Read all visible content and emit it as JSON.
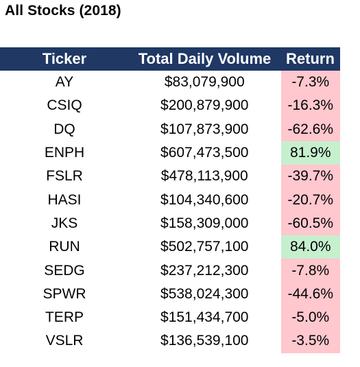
{
  "title": "All Stocks (2018)",
  "columns": {
    "ticker": "Ticker",
    "volume": "Total Daily Volume",
    "return": "Return"
  },
  "colors": {
    "header_bg": "#1f3864",
    "header_text": "#ffffff",
    "positive_bg": "#c6efce",
    "negative_bg": "#ffc7ce"
  },
  "rows": [
    {
      "ticker": "AY",
      "volume": "$83,079,900",
      "return": "-7.3%",
      "status": "negative"
    },
    {
      "ticker": "CSIQ",
      "volume": "$200,879,900",
      "return": "-16.3%",
      "status": "negative"
    },
    {
      "ticker": "DQ",
      "volume": "$107,873,900",
      "return": "-62.6%",
      "status": "negative"
    },
    {
      "ticker": "ENPH",
      "volume": "$607,473,500",
      "return": "81.9%",
      "status": "positive"
    },
    {
      "ticker": "FSLR",
      "volume": "$478,113,900",
      "return": "-39.7%",
      "status": "negative"
    },
    {
      "ticker": "HASI",
      "volume": "$104,340,600",
      "return": "-20.7%",
      "status": "negative"
    },
    {
      "ticker": "JKS",
      "volume": "$158,309,000",
      "return": "-60.5%",
      "status": "negative"
    },
    {
      "ticker": "RUN",
      "volume": "$502,757,100",
      "return": "84.0%",
      "status": "positive"
    },
    {
      "ticker": "SEDG",
      "volume": "$237,212,300",
      "return": "-7.8%",
      "status": "negative"
    },
    {
      "ticker": "SPWR",
      "volume": "$538,024,300",
      "return": "-44.6%",
      "status": "negative"
    },
    {
      "ticker": "TERP",
      "volume": "$151,434,700",
      "return": "-5.0%",
      "status": "negative"
    },
    {
      "ticker": "VSLR",
      "volume": "$136,539,100",
      "return": "-3.5%",
      "status": "negative"
    }
  ]
}
